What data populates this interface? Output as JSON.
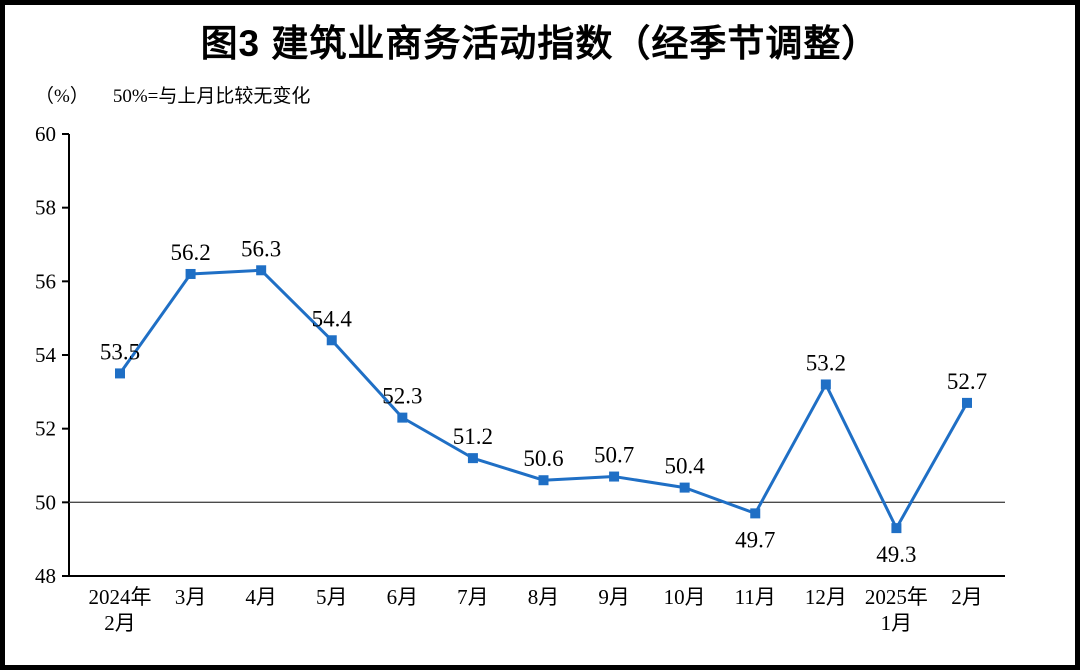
{
  "chart": {
    "title": "图3  建筑业商务活动指数（经季节调整）",
    "unit": "（%）",
    "note": "50%=与上月比较无变化"
  },
  "chart_data": {
    "type": "line",
    "title": "图3  建筑业商务活动指数（经季节调整）",
    "subtitle": "（%） 50%=与上月比较无变化",
    "categories": [
      "2024年\n2月",
      "3月",
      "4月",
      "5月",
      "6月",
      "7月",
      "8月",
      "9月",
      "10月",
      "11月",
      "12月",
      "2025年\n1月",
      "2月"
    ],
    "values": [
      53.5,
      56.2,
      56.3,
      54.4,
      52.3,
      51.2,
      50.6,
      50.7,
      50.4,
      49.7,
      53.2,
      49.3,
      52.7
    ],
    "ylabel": "%",
    "ylim": [
      48,
      60
    ],
    "ytick_step": 2,
    "reference_line": 50,
    "marker": "square",
    "line_color": "#1F6FC5",
    "axis_color": "#000000",
    "reference_line_color": "#4a4a4a",
    "grid": false,
    "legend": false
  }
}
